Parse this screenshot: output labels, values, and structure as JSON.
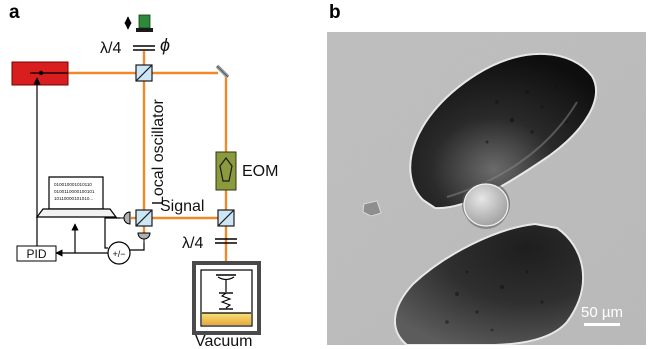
{
  "panel_a": {
    "panel_label": "a",
    "labels": {
      "local_oscillator": "Local oscillator",
      "signal": "Signal",
      "eom": "EOM",
      "vacuum": "Vacuum",
      "pid": "PID",
      "plusminus": "+/−",
      "lambda4_top": "λ/4",
      "lambda4_bottom": "λ/4",
      "phi": "ϕ"
    },
    "laptop_screen_lines": [
      "010010001010110",
      "0100110000100101",
      "10110000101010..."
    ],
    "colors": {
      "beam": "#ee8a2a",
      "laser": "#d81e1e",
      "eom": "#8a9a3c",
      "piezo": "#2d8a3a",
      "mirror_glow": "#f2c94c"
    }
  },
  "panel_b": {
    "panel_label": "b",
    "scalebar_label": "50 µm"
  }
}
